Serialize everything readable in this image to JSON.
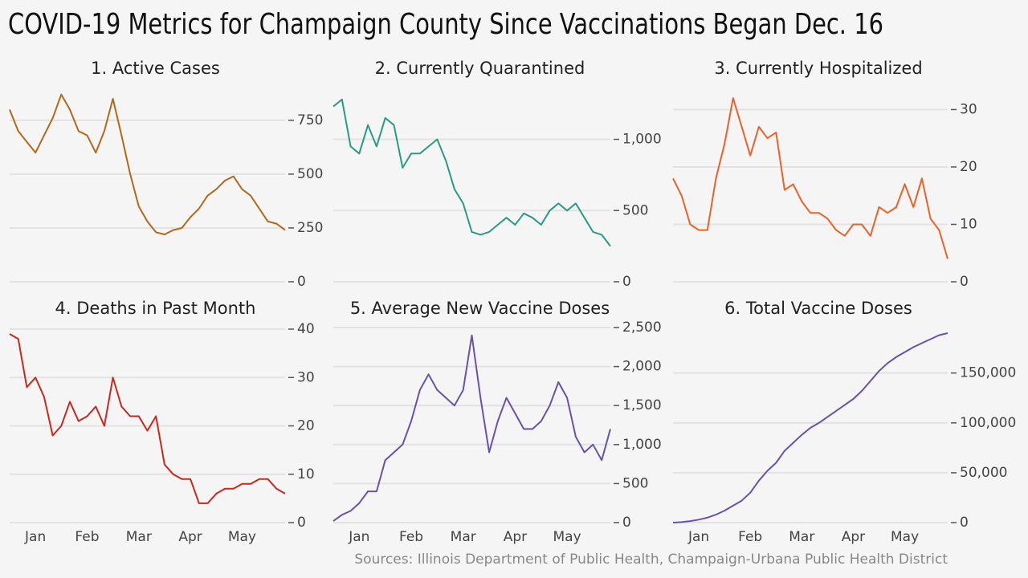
{
  "title": "COVID-19 Metrics for Champaign County Since Vaccinations Began Dec. 16",
  "source": "Sources: Illinois Department of Public Health, Champaign-Urbana Public Health District",
  "chart_data": [
    {
      "type": "line",
      "title": "1. Active Cases",
      "color": "#b06a1a",
      "grid": true,
      "values": [
        800,
        700,
        650,
        600,
        680,
        760,
        870,
        800,
        700,
        680,
        600,
        700,
        850,
        680,
        500,
        350,
        280,
        230,
        220,
        240,
        250,
        300,
        340,
        400,
        430,
        470,
        490,
        430,
        400,
        340,
        280,
        270,
        240
      ],
      "ylim": [
        0,
        880
      ],
      "yticks": [
        0,
        250,
        500,
        750
      ]
    },
    {
      "type": "line",
      "title": "2. Currently Quarantined",
      "color": "#2a9a86",
      "grid": true,
      "values": [
        1230,
        1280,
        950,
        900,
        1100,
        950,
        1150,
        1100,
        800,
        900,
        900,
        950,
        1000,
        850,
        650,
        550,
        350,
        330,
        350,
        400,
        450,
        400,
        480,
        450,
        400,
        500,
        550,
        500,
        550,
        450,
        350,
        330,
        250
      ],
      "ylim": [
        0,
        1330
      ],
      "yticks": [
        0,
        500,
        {
          "value": 1000,
          "label": "1,000"
        }
      ]
    },
    {
      "type": "line",
      "title": "3. Currently Hospitalized",
      "color": "#e8622a",
      "grid": true,
      "values": [
        18,
        15,
        10,
        9,
        9,
        18,
        24,
        32,
        27,
        22,
        27,
        25,
        26,
        16,
        17,
        14,
        12,
        12,
        11,
        9,
        8,
        10,
        10,
        8,
        13,
        12,
        13,
        17,
        13,
        18,
        11,
        9,
        4
      ],
      "ylim": [
        0,
        33
      ],
      "yticks": [
        0,
        10,
        20,
        30
      ]
    },
    {
      "type": "line",
      "title": "4. Deaths in Past Month",
      "color": "#c8281e",
      "grid": true,
      "categories": [
        null,
        null,
        null,
        "Jan",
        null,
        null,
        null,
        null,
        null,
        "Feb",
        null,
        null,
        null,
        null,
        null,
        "Mar",
        null,
        null,
        null,
        null,
        null,
        "Apr",
        null,
        null,
        null,
        null,
        null,
        "May",
        null,
        null,
        null,
        null,
        null
      ],
      "values": [
        39,
        38,
        28,
        30,
        26,
        18,
        20,
        25,
        21,
        22,
        24,
        20,
        30,
        24,
        22,
        22,
        19,
        22,
        12,
        10,
        9,
        9,
        4,
        4,
        6,
        7,
        7,
        8,
        8,
        9,
        9,
        7,
        6
      ],
      "ylim": [
        0,
        40
      ],
      "yticks": [
        0,
        10,
        20,
        30,
        40
      ]
    },
    {
      "type": "line",
      "title": "5. Average New Vaccine Doses",
      "color": "#6a52a8",
      "grid": true,
      "categories": [
        null,
        null,
        null,
        "Jan",
        null,
        null,
        null,
        null,
        null,
        "Feb",
        null,
        null,
        null,
        null,
        null,
        "Mar",
        null,
        null,
        null,
        null,
        null,
        "Apr",
        null,
        null,
        null,
        null,
        null,
        "May",
        null,
        null,
        null,
        null,
        null
      ],
      "values": [
        20,
        100,
        150,
        250,
        400,
        400,
        800,
        900,
        1000,
        1300,
        1700,
        1900,
        1700,
        1600,
        1500,
        1700,
        2400,
        1600,
        900,
        1300,
        1600,
        1400,
        1200,
        1200,
        1300,
        1500,
        1800,
        1600,
        1100,
        900,
        1000,
        800,
        1200
      ],
      "ylim": [
        0,
        2500
      ],
      "yticks": [
        0,
        500,
        {
          "value": 1000,
          "label": "1,000"
        },
        {
          "value": 1500,
          "label": "1,500"
        },
        {
          "value": 2000,
          "label": "2,000"
        },
        {
          "value": 2500,
          "label": "2,500"
        }
      ]
    },
    {
      "type": "line",
      "title": "6. Total Vaccine Doses",
      "color": "#6a52a8",
      "grid": true,
      "categories": [
        null,
        null,
        null,
        "Jan",
        null,
        null,
        null,
        null,
        null,
        "Feb",
        null,
        null,
        null,
        null,
        null,
        "Mar",
        null,
        null,
        null,
        null,
        null,
        "Apr",
        null,
        null,
        null,
        null,
        null,
        "May",
        null,
        null,
        null,
        null,
        null
      ],
      "values": [
        0,
        500,
        1500,
        3000,
        5000,
        8000,
        12000,
        17000,
        22000,
        30000,
        42000,
        52000,
        60000,
        72000,
        80000,
        88000,
        95000,
        100000,
        106000,
        112000,
        118000,
        124000,
        132000,
        142000,
        152000,
        160000,
        166000,
        171000,
        176000,
        180000,
        184000,
        188000,
        190000
      ],
      "ylim": [
        0,
        190000
      ],
      "yticks": [
        0,
        {
          "value": 50000,
          "label": "50,000"
        },
        {
          "value": 100000,
          "label": "100,000"
        },
        {
          "value": 150000,
          "label": "150,000"
        }
      ]
    }
  ]
}
